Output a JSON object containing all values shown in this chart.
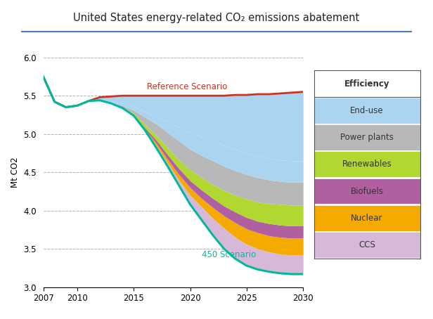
{
  "title": "United States energy-related CO₂ emissions abatement",
  "ylabel": "Mt CO2",
  "xlim": [
    2007,
    2030
  ],
  "ylim": [
    3.0,
    6.0
  ],
  "yticks": [
    3.0,
    3.5,
    4.0,
    4.5,
    5.0,
    5.5,
    6.0
  ],
  "xticks": [
    2007,
    2010,
    2015,
    2020,
    2025,
    2030
  ],
  "background_color": "#ffffff",
  "reference_color": "#cc3322",
  "scenario_450_color": "#00b89c",
  "colors": {
    "end_use": "#aad4f0",
    "power_plants": "#b8b8b8",
    "renewables": "#b0d830",
    "biofuels": "#b060a0",
    "nuclear": "#f5aa00",
    "ccs": "#d8b8d8"
  },
  "years": [
    2007,
    2008,
    2009,
    2010,
    2011,
    2012,
    2013,
    2014,
    2015,
    2016,
    2017,
    2018,
    2019,
    2020,
    2021,
    2022,
    2023,
    2024,
    2025,
    2026,
    2027,
    2028,
    2029,
    2030
  ],
  "reference": [
    5.75,
    5.42,
    5.35,
    5.37,
    5.43,
    5.48,
    5.49,
    5.5,
    5.5,
    5.5,
    5.5,
    5.5,
    5.5,
    5.5,
    5.5,
    5.5,
    5.5,
    5.51,
    5.51,
    5.52,
    5.52,
    5.53,
    5.54,
    5.55
  ],
  "scenario_450": [
    5.75,
    5.42,
    5.35,
    5.37,
    5.43,
    5.44,
    5.4,
    5.34,
    5.24,
    5.05,
    4.82,
    4.58,
    4.33,
    4.08,
    3.88,
    3.68,
    3.5,
    3.37,
    3.28,
    3.23,
    3.2,
    3.18,
    3.17,
    3.17
  ],
  "ccs_top": [
    5.75,
    5.42,
    5.35,
    5.37,
    5.43,
    5.44,
    5.4,
    5.34,
    5.24,
    5.05,
    4.85,
    4.62,
    4.4,
    4.2,
    4.05,
    3.9,
    3.77,
    3.65,
    3.56,
    3.5,
    3.46,
    3.43,
    3.42,
    3.42
  ],
  "nuclear_top": [
    5.75,
    5.42,
    5.35,
    5.37,
    5.43,
    5.44,
    5.4,
    5.34,
    5.24,
    5.06,
    4.88,
    4.67,
    4.47,
    4.3,
    4.16,
    4.04,
    3.93,
    3.84,
    3.76,
    3.71,
    3.67,
    3.65,
    3.64,
    3.64
  ],
  "biofuels_top": [
    5.75,
    5.42,
    5.35,
    5.37,
    5.43,
    5.44,
    5.4,
    5.34,
    5.25,
    5.08,
    4.92,
    4.73,
    4.55,
    4.39,
    4.27,
    4.16,
    4.06,
    3.98,
    3.91,
    3.86,
    3.83,
    3.81,
    3.8,
    3.8
  ],
  "renewables_top": [
    5.75,
    5.42,
    5.35,
    5.37,
    5.43,
    5.44,
    5.4,
    5.35,
    5.27,
    5.12,
    4.98,
    4.82,
    4.66,
    4.53,
    4.43,
    4.34,
    4.26,
    4.2,
    4.15,
    4.11,
    4.09,
    4.08,
    4.07,
    4.07
  ],
  "power_plants_top": [
    5.75,
    5.42,
    5.35,
    5.37,
    5.43,
    5.44,
    5.41,
    5.37,
    5.31,
    5.22,
    5.13,
    5.02,
    4.91,
    4.8,
    4.72,
    4.65,
    4.58,
    4.52,
    4.47,
    4.43,
    4.4,
    4.38,
    4.37,
    4.37
  ],
  "end_use_top": [
    5.75,
    5.42,
    5.35,
    5.37,
    5.43,
    5.44,
    5.42,
    5.4,
    5.36,
    5.29,
    5.23,
    5.16,
    5.09,
    5.02,
    4.96,
    4.91,
    4.85,
    4.8,
    4.75,
    4.71,
    4.68,
    4.66,
    4.65,
    4.65
  ]
}
